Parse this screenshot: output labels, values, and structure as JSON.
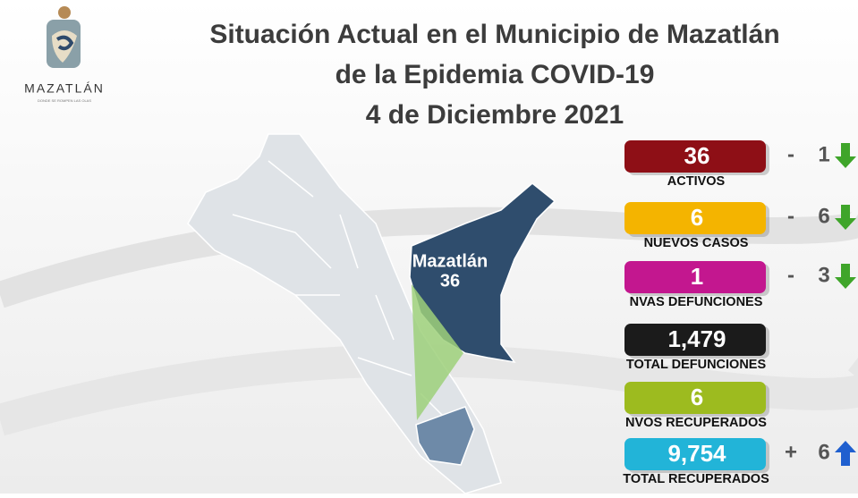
{
  "logo": {
    "name": "MAZATLÁN",
    "tagline": "DONDE SE ROMPEN LAS OLAS"
  },
  "header": {
    "title_lines": [
      "Situación Actual en el Municipio de Mazatlán",
      "de la Epidemia COVID-19",
      "4 de Diciembre 2021"
    ]
  },
  "map": {
    "label": "Mazatlán",
    "value": "36"
  },
  "stats": [
    {
      "value": "36",
      "label": "ACTIVOS",
      "color": "#8e0f16",
      "text_color": "#ffffff",
      "change": {
        "sign": "-",
        "amount": "1",
        "trend": "down"
      }
    },
    {
      "value": "6",
      "label": "NUEVOS CASOS",
      "color": "#f4b400",
      "text_color": "#ffffff",
      "change": {
        "sign": "-",
        "amount": "6",
        "trend": "down"
      }
    },
    {
      "value": "1",
      "label": "NVAS DEFUNCIONES",
      "color": "#c3178f",
      "text_color": "#ffffff",
      "change": {
        "sign": "-",
        "amount": "3",
        "trend": "down"
      }
    },
    {
      "value": "1,479",
      "label": "TOTAL DEFUNCIONES",
      "color": "#1b1b1b",
      "text_color": "#ffffff",
      "change": null
    },
    {
      "value": "6",
      "label": "NVOS RECUPERADOS",
      "color": "#9dbb1f",
      "text_color": "#ffffff",
      "change": null
    },
    {
      "value": "9,754",
      "label": "TOTAL RECUPERADOS",
      "color": "#22b4d8",
      "text_color": "#ffffff",
      "change": {
        "sign": "+",
        "amount": "6",
        "trend": "up"
      }
    }
  ]
}
